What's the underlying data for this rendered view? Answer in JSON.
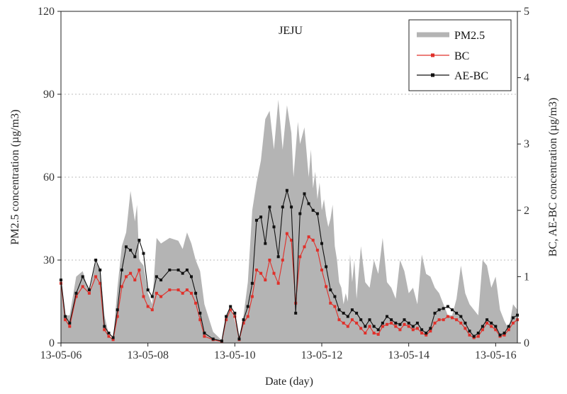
{
  "chart_data": {
    "type": "area",
    "title": "JEJU",
    "xlabel": "Date (day)",
    "ylabel_left": "PM2.5 concentration (µg/m3)",
    "ylabel_right": "BC, AE-BC concentration (µg/m3)",
    "x_tick_labels": [
      "13-05-06",
      "13-05-08",
      "13-05-10",
      "13-05-12",
      "13-05-14",
      "13-05-16"
    ],
    "x_range_days": [
      0,
      10.5
    ],
    "y_left_range": [
      0,
      120
    ],
    "y_left_ticks": [
      "0",
      "30",
      "60",
      "90",
      "120"
    ],
    "y_right_range": [
      0,
      5
    ],
    "y_right_ticks": [
      "0",
      "1",
      "2",
      "3",
      "4",
      "5"
    ],
    "grid": "horizontal dotted",
    "legend_position": "top-right",
    "colors": {
      "pm25": "#b4b4b4",
      "bc": "#e0302a",
      "aebc": "#111111",
      "grid": "#bbbbbb"
    },
    "series": [
      {
        "name": "PM2.5",
        "axis": "left",
        "style": "filled-area",
        "x": [
          0,
          0.1,
          0.2,
          0.35,
          0.5,
          0.65,
          0.8,
          0.9,
          1.0,
          1.1,
          1.2,
          1.3,
          1.4,
          1.5,
          1.6,
          1.7,
          1.75,
          1.8,
          1.9,
          2.0,
          2.1,
          2.2,
          2.3,
          2.5,
          2.7,
          2.8,
          2.9,
          3.0,
          3.1,
          3.2,
          3.3,
          3.5,
          3.7,
          3.8,
          3.9,
          4.0,
          4.1,
          4.2,
          4.3,
          4.4,
          4.5,
          4.6,
          4.7,
          4.8,
          4.9,
          5.0,
          5.1,
          5.2,
          5.3,
          5.35,
          5.45,
          5.5,
          5.6,
          5.7,
          5.75,
          5.8,
          5.85,
          5.9,
          5.95,
          6.0,
          6.05,
          6.1,
          6.15,
          6.2,
          6.25,
          6.3,
          6.35,
          6.4,
          6.45,
          6.5,
          6.55,
          6.6,
          6.65,
          6.7,
          6.75,
          6.8,
          6.9,
          7.0,
          7.1,
          7.2,
          7.3,
          7.4,
          7.5,
          7.6,
          7.7,
          7.8,
          7.9,
          8.0,
          8.1,
          8.2,
          8.3,
          8.4,
          8.5,
          8.6,
          8.7,
          8.8,
          8.9,
          9.0,
          9.1,
          9.2,
          9.3,
          9.4,
          9.5,
          9.6,
          9.7,
          9.8,
          9.9,
          10.0,
          10.1,
          10.2,
          10.3,
          10.4,
          10.5
        ],
        "values": [
          24,
          10,
          10,
          24,
          26,
          18,
          29,
          27,
          10,
          3,
          1,
          20,
          35,
          40,
          55,
          44,
          50,
          30,
          28,
          18,
          14,
          38,
          36,
          38,
          37,
          34,
          40,
          36,
          30,
          26,
          14,
          4,
          1,
          10,
          13,
          8,
          2,
          10,
          22,
          48,
          58,
          66,
          81,
          84,
          70,
          88,
          70,
          86,
          76,
          60,
          80,
          72,
          78,
          60,
          70,
          56,
          62,
          52,
          58,
          48,
          52,
          46,
          42,
          45,
          50,
          35,
          30,
          22,
          20,
          14,
          18,
          15,
          32,
          22,
          30,
          16,
          35,
          22,
          20,
          30,
          25,
          38,
          22,
          20,
          16,
          30,
          26,
          18,
          20,
          14,
          32,
          25,
          24,
          20,
          18,
          14,
          10,
          10,
          16,
          28,
          18,
          14,
          12,
          10,
          30,
          28,
          20,
          24,
          12,
          8,
          5,
          14,
          12
        ]
      },
      {
        "name": "BC",
        "axis": "right",
        "style": "line-markers",
        "x": [
          0,
          0.1,
          0.2,
          0.35,
          0.5,
          0.65,
          0.8,
          0.9,
          1.0,
          1.1,
          1.2,
          1.3,
          1.4,
          1.5,
          1.6,
          1.7,
          1.8,
          1.9,
          2.0,
          2.1,
          2.2,
          2.3,
          2.5,
          2.7,
          2.8,
          2.9,
          3.0,
          3.1,
          3.2,
          3.3,
          3.5,
          3.7,
          3.8,
          3.9,
          4.0,
          4.1,
          4.2,
          4.3,
          4.4,
          4.5,
          4.6,
          4.7,
          4.8,
          4.9,
          5.0,
          5.1,
          5.2,
          5.3,
          5.4,
          5.5,
          5.6,
          5.7,
          5.8,
          5.9,
          6.0,
          6.1,
          6.2,
          6.3,
          6.4,
          6.5,
          6.6,
          6.7,
          6.8,
          6.9,
          7.0,
          7.1,
          7.2,
          7.3,
          7.4,
          7.5,
          7.6,
          7.7,
          7.8,
          7.9,
          8.0,
          8.1,
          8.2,
          8.3,
          8.4,
          8.5,
          8.6,
          8.7,
          8.8,
          8.9,
          9.0,
          9.1,
          9.2,
          9.3,
          9.4,
          9.5,
          9.6,
          9.7,
          9.8,
          9.9,
          10.0,
          10.1,
          10.2,
          10.3,
          10.4,
          10.5
        ],
        "values": [
          0.9,
          0.35,
          0.25,
          0.7,
          0.85,
          0.75,
          1.0,
          0.9,
          0.2,
          0.1,
          0.05,
          0.4,
          0.85,
          1.0,
          1.05,
          0.95,
          1.1,
          0.7,
          0.55,
          0.5,
          0.75,
          0.7,
          0.8,
          0.8,
          0.75,
          0.8,
          0.75,
          0.6,
          0.35,
          0.1,
          0.05,
          0.02,
          0.35,
          0.5,
          0.4,
          0.05,
          0.3,
          0.4,
          0.7,
          1.1,
          1.05,
          0.95,
          1.25,
          1.05,
          0.9,
          1.25,
          1.65,
          1.55,
          0.6,
          1.3,
          1.45,
          1.6,
          1.55,
          1.4,
          1.1,
          0.85,
          0.6,
          0.55,
          0.35,
          0.3,
          0.25,
          0.35,
          0.3,
          0.22,
          0.15,
          0.25,
          0.15,
          0.13,
          0.25,
          0.28,
          0.3,
          0.25,
          0.2,
          0.28,
          0.25,
          0.2,
          0.22,
          0.15,
          0.12,
          0.18,
          0.3,
          0.35,
          0.35,
          0.4,
          0.38,
          0.35,
          0.3,
          0.22,
          0.12,
          0.08,
          0.1,
          0.2,
          0.3,
          0.25,
          0.2,
          0.1,
          0.12,
          0.2,
          0.3,
          0.35
        ]
      },
      {
        "name": "AE-BC",
        "axis": "right",
        "style": "line-markers",
        "x": [
          0,
          0.1,
          0.2,
          0.35,
          0.5,
          0.65,
          0.8,
          0.9,
          1.0,
          1.1,
          1.2,
          1.3,
          1.4,
          1.5,
          1.6,
          1.7,
          1.8,
          1.9,
          2.0,
          2.1,
          2.2,
          2.3,
          2.5,
          2.7,
          2.8,
          2.9,
          3.0,
          3.1,
          3.2,
          3.3,
          3.5,
          3.7,
          3.8,
          3.9,
          4.0,
          4.1,
          4.2,
          4.3,
          4.4,
          4.5,
          4.6,
          4.7,
          4.8,
          4.9,
          5.0,
          5.1,
          5.2,
          5.3,
          5.4,
          5.5,
          5.6,
          5.7,
          5.8,
          5.9,
          6.0,
          6.1,
          6.2,
          6.3,
          6.4,
          6.5,
          6.6,
          6.7,
          6.8,
          6.9,
          7.0,
          7.1,
          7.2,
          7.3,
          7.4,
          7.5,
          7.6,
          7.7,
          7.8,
          7.9,
          8.0,
          8.1,
          8.2,
          8.3,
          8.4,
          8.5,
          8.6,
          8.7,
          8.8,
          8.9,
          9.0,
          9.1,
          9.2,
          9.3,
          9.4,
          9.5,
          9.6,
          9.7,
          9.8,
          9.9,
          10.0,
          10.1,
          10.2,
          10.3,
          10.4,
          10.5
        ],
        "values": [
          0.95,
          0.4,
          0.3,
          0.75,
          1.0,
          0.8,
          1.25,
          1.1,
          0.25,
          0.15,
          0.08,
          0.5,
          1.1,
          1.45,
          1.4,
          1.3,
          1.55,
          1.35,
          0.8,
          0.7,
          1.0,
          0.95,
          1.1,
          1.1,
          1.05,
          1.1,
          1.0,
          0.75,
          0.45,
          0.15,
          0.06,
          0.03,
          0.4,
          0.55,
          0.45,
          0.06,
          0.35,
          0.55,
          0.9,
          1.85,
          1.9,
          1.5,
          2.05,
          1.75,
          1.3,
          2.05,
          2.3,
          2.05,
          0.45,
          1.95,
          2.25,
          2.1,
          2.0,
          1.95,
          1.5,
          1.15,
          0.8,
          0.7,
          0.5,
          0.45,
          0.4,
          0.5,
          0.45,
          0.35,
          0.25,
          0.35,
          0.25,
          0.2,
          0.3,
          0.4,
          0.35,
          0.3,
          0.28,
          0.35,
          0.3,
          0.25,
          0.3,
          0.2,
          0.15,
          0.22,
          0.45,
          0.5,
          0.52,
          0.55,
          0.5,
          0.45,
          0.4,
          0.3,
          0.18,
          0.1,
          0.15,
          0.25,
          0.35,
          0.3,
          0.25,
          0.12,
          0.15,
          0.25,
          0.38,
          0.42
        ]
      }
    ]
  }
}
